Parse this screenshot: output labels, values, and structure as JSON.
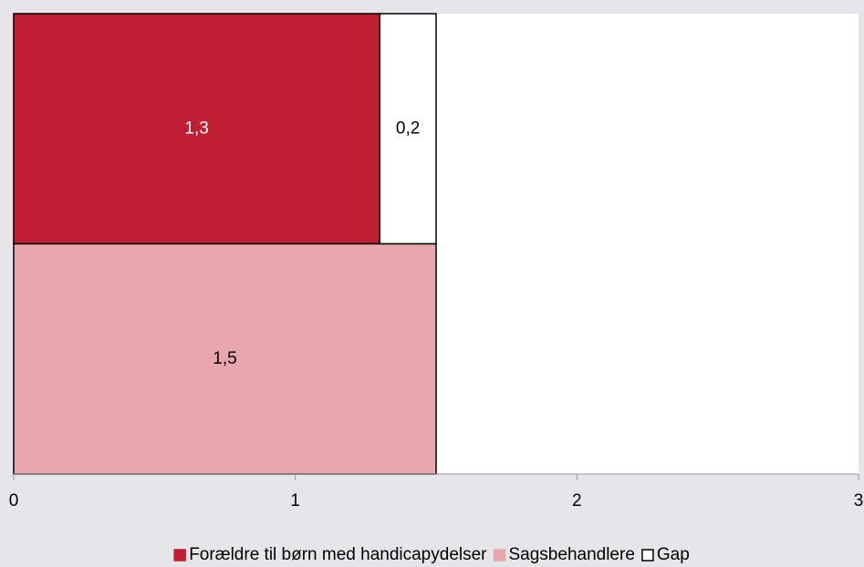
{
  "chart_data": {
    "type": "stacked-barh",
    "categories": [
      null,
      null
    ],
    "series": [
      {
        "name": "Forældre til børn med handicapydelser",
        "color": "#c01e32",
        "values": [
          1.3,
          null
        ],
        "value_labels": [
          "1,3",
          null
        ],
        "label_color": "#ffffff"
      },
      {
        "name": "Sagsbehandlere",
        "color": "#e8a7ac",
        "values": [
          null,
          1.5
        ],
        "value_labels": [
          null,
          "1,5"
        ],
        "label_color": "#000000"
      },
      {
        "name": "Gap",
        "color": "#ffffff",
        "values": [
          0.2,
          null
        ],
        "value_labels": [
          "0,2",
          null
        ],
        "label_color": "#000000"
      }
    ],
    "xlim": [
      0,
      3
    ],
    "xticks": [
      0,
      1,
      2,
      3
    ],
    "grid": false,
    "legend": "bottom"
  }
}
